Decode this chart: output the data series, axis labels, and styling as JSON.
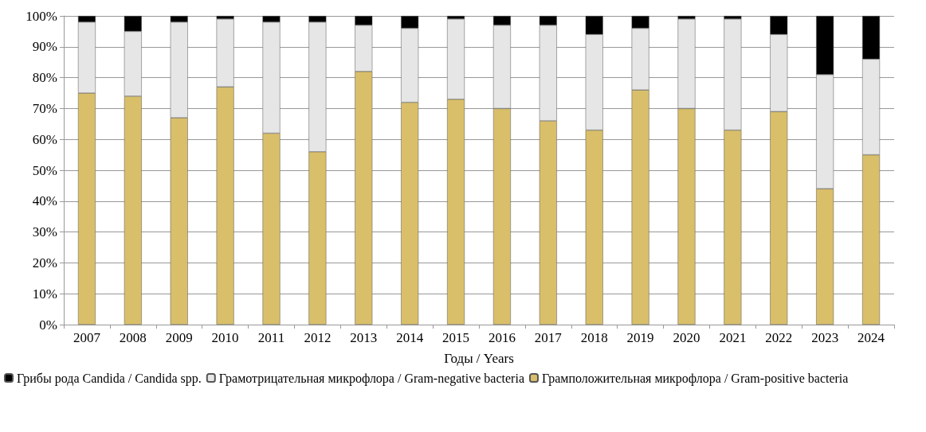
{
  "chart_data": {
    "type": "bar",
    "stacked": true,
    "xlabel": "Годы / Years",
    "categories": [
      "2007",
      "2008",
      "2009",
      "2010",
      "2011",
      "2012",
      "2013",
      "2014",
      "2015",
      "2016",
      "2017",
      "2018",
      "2019",
      "2020",
      "2021",
      "2022",
      "2023",
      "2024"
    ],
    "series": [
      {
        "name": "Грамположительная микрофлора / Gram-positive bacteria",
        "color": "#d9bf6a",
        "values": [
          75,
          74,
          67,
          77,
          62,
          56,
          82,
          72,
          73,
          70,
          66,
          63,
          76,
          70,
          63,
          69,
          44,
          55
        ]
      },
      {
        "name": "Грамотрицательная микрофлора / Gram-negative bacteria",
        "color": "#e6e6e6",
        "values": [
          23,
          21,
          31,
          22,
          36,
          42,
          15,
          24,
          26,
          27,
          31,
          31,
          20,
          29,
          36,
          25,
          37,
          31
        ]
      },
      {
        "name": "Грибы рода Candida / Candida spp.",
        "color": "#000000",
        "values": [
          2,
          5,
          2,
          1,
          2,
          2,
          3,
          4,
          1,
          3,
          3,
          6,
          4,
          1,
          1,
          6,
          19,
          14
        ]
      }
    ],
    "ylim": [
      0,
      100
    ],
    "yticks": [
      {
        "value": 0,
        "label": "0%"
      },
      {
        "value": 10,
        "label": "10%"
      },
      {
        "value": 20,
        "label": "20%"
      },
      {
        "value": 30,
        "label": "30%"
      },
      {
        "value": 40,
        "label": "40%"
      },
      {
        "value": 50,
        "label": "50%"
      },
      {
        "value": 60,
        "label": "60%"
      },
      {
        "value": 70,
        "label": "70%"
      },
      {
        "value": 80,
        "label": "80%"
      },
      {
        "value": 90,
        "label": "90%"
      },
      {
        "value": 100,
        "label": "100%"
      }
    ],
    "grid": "y",
    "legend": "bottom"
  }
}
